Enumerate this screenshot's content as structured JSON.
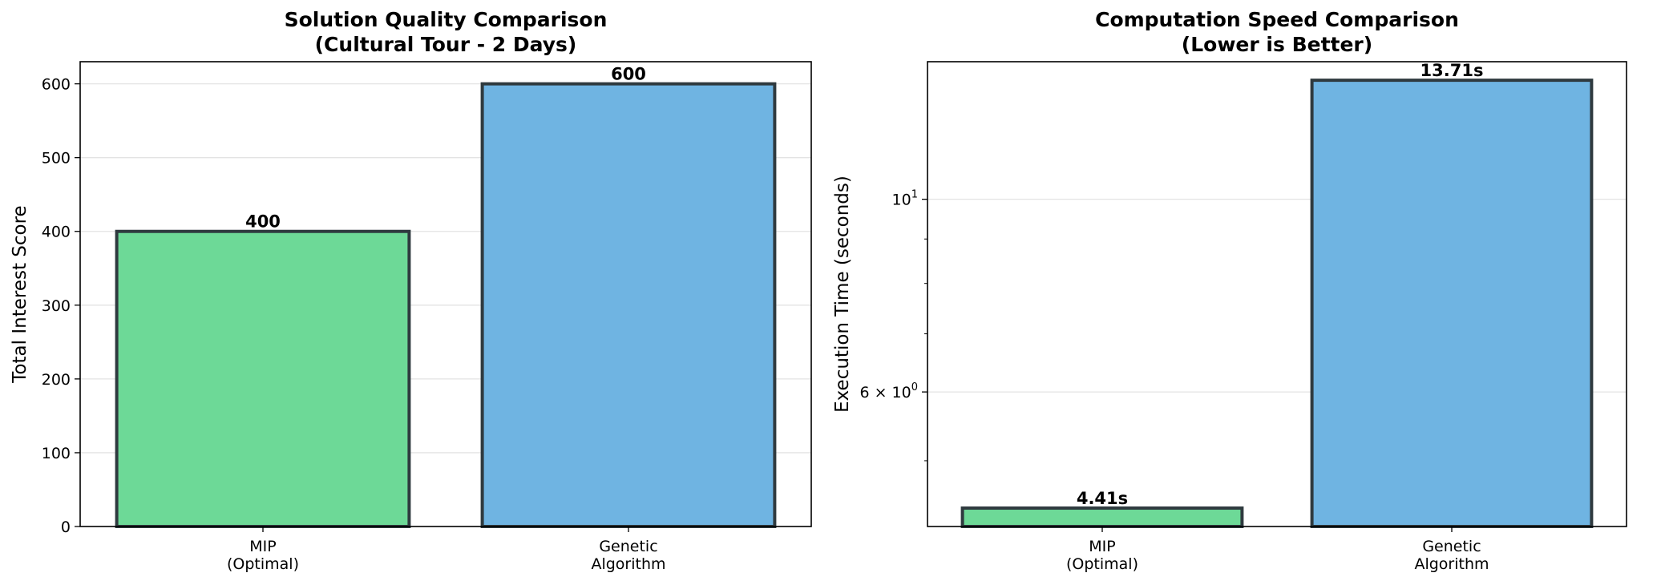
{
  "chart_data": [
    {
      "type": "bar",
      "title": "Solution Quality Comparison\n(Cultural Tour - 2 Days)",
      "xlabel": "",
      "ylabel": "Total Interest Score",
      "categories": [
        "MIP\n(Optimal)",
        "Genetic\nAlgorithm"
      ],
      "values": [
        400,
        600
      ],
      "data_labels": [
        "400",
        "600"
      ],
      "colors": [
        "#6dd997",
        "#6fb4e2"
      ],
      "edge_color": "#2f3a3f",
      "ylim": [
        0,
        630
      ],
      "yticks": [
        0,
        100,
        200,
        300,
        400,
        500,
        600
      ],
      "ytick_labels": [
        "0",
        "100",
        "200",
        "300",
        "400",
        "500",
        "600"
      ],
      "yscale": "linear",
      "grid": "y"
    },
    {
      "type": "bar",
      "title": "Computation Speed Comparison\n(Lower is Better)",
      "xlabel": "",
      "ylabel": "Execution Time (seconds)",
      "categories": [
        "MIP\n(Optimal)",
        "Genetic\nAlgorithm"
      ],
      "values": [
        4.41,
        13.71
      ],
      "data_labels": [
        "4.41s",
        "13.71s"
      ],
      "colors": [
        "#6dd997",
        "#6fb4e2"
      ],
      "edge_color": "#2f3a3f",
      "ylim": [
        4.2,
        14.4
      ],
      "yscale": "log",
      "yticks": [
        6,
        10
      ],
      "ytick_labels": [
        "6 × 10⁰",
        "10¹"
      ],
      "minor_yticks": [
        5,
        7,
        8,
        9
      ],
      "grid": "y"
    }
  ]
}
